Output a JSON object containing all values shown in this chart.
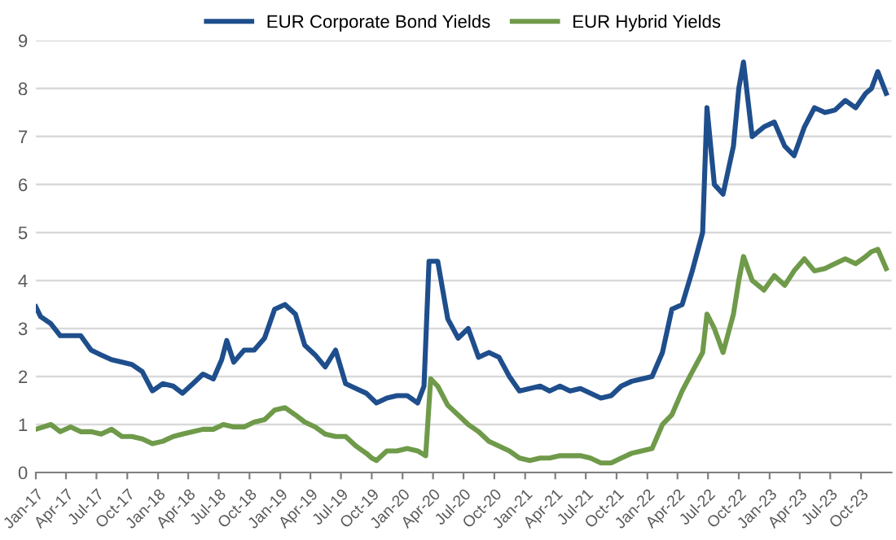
{
  "chart_data": {
    "type": "line",
    "legend": "top",
    "grid": "y",
    "line_style": "solid",
    "marker": "none",
    "xlim": [
      "2017-01-01",
      "2023-12-31"
    ],
    "ylim": [
      0,
      9
    ],
    "yticks": [
      0,
      1,
      2,
      3,
      4,
      5,
      6,
      7,
      8,
      9
    ],
    "xticks": [
      {
        "value": "2017-01-01",
        "label": "Jan-17"
      },
      {
        "value": "2017-04-01",
        "label": "Apr-17"
      },
      {
        "value": "2017-07-01",
        "label": "Jul-17"
      },
      {
        "value": "2017-10-01",
        "label": "Oct-17"
      },
      {
        "value": "2018-01-01",
        "label": "Jan-18"
      },
      {
        "value": "2018-04-01",
        "label": "Apr-18"
      },
      {
        "value": "2018-07-01",
        "label": "Jul-18"
      },
      {
        "value": "2018-10-01",
        "label": "Oct-18"
      },
      {
        "value": "2019-01-01",
        "label": "Jan-19"
      },
      {
        "value": "2019-04-01",
        "label": "Apr-19"
      },
      {
        "value": "2019-07-01",
        "label": "Jul-19"
      },
      {
        "value": "2019-10-01",
        "label": "Oct-19"
      },
      {
        "value": "2020-01-01",
        "label": "Jan-20"
      },
      {
        "value": "2020-04-01",
        "label": "Apr-20"
      },
      {
        "value": "2020-07-01",
        "label": "Jul-20"
      },
      {
        "value": "2020-10-01",
        "label": "Oct-20"
      },
      {
        "value": "2021-01-01",
        "label": "Jan-21"
      },
      {
        "value": "2021-04-01",
        "label": "Apr-21"
      },
      {
        "value": "2021-07-01",
        "label": "Jul-21"
      },
      {
        "value": "2021-10-01",
        "label": "Oct-21"
      },
      {
        "value": "2022-01-01",
        "label": "Jan-22"
      },
      {
        "value": "2022-04-01",
        "label": "Apr-22"
      },
      {
        "value": "2022-07-01",
        "label": "Jul-22"
      },
      {
        "value": "2022-10-01",
        "label": "Oct-22"
      },
      {
        "value": "2023-01-01",
        "label": "Jan-23"
      },
      {
        "value": "2023-04-01",
        "label": "Apr-23"
      },
      {
        "value": "2023-07-01",
        "label": "Jul-23"
      },
      {
        "value": "2023-10-01",
        "label": "Oct-23"
      }
    ],
    "series": [
      {
        "name": "EUR Corporate Bond Yields",
        "color": "#1f4e8c",
        "x": [
          "2017-01-01",
          "2017-01-15",
          "2017-02-15",
          "2017-03-15",
          "2017-05-15",
          "2017-06-15",
          "2017-07-15",
          "2017-08-15",
          "2017-09-15",
          "2017-10-15",
          "2017-11-15",
          "2017-12-15",
          "2018-01-15",
          "2018-02-15",
          "2018-03-15",
          "2018-04-15",
          "2018-05-15",
          "2018-06-15",
          "2018-07-10",
          "2018-07-25",
          "2018-08-15",
          "2018-09-15",
          "2018-10-15",
          "2018-11-15",
          "2018-12-15",
          "2019-01-15",
          "2019-02-15",
          "2019-03-15",
          "2019-04-15",
          "2019-05-15",
          "2019-06-15",
          "2019-07-15",
          "2019-08-15",
          "2019-09-15",
          "2019-10-15",
          "2019-11-15",
          "2019-12-15",
          "2020-01-15",
          "2020-02-15",
          "2020-03-05",
          "2020-03-20",
          "2020-04-15",
          "2020-05-15",
          "2020-06-15",
          "2020-07-15",
          "2020-08-15",
          "2020-09-15",
          "2020-10-15",
          "2020-11-15",
          "2020-12-15",
          "2021-01-15",
          "2021-02-15",
          "2021-03-15",
          "2021-04-15",
          "2021-05-15",
          "2021-06-15",
          "2021-07-15",
          "2021-08-15",
          "2021-09-15",
          "2021-10-15",
          "2021-11-15",
          "2021-12-15",
          "2022-01-15",
          "2022-02-15",
          "2022-03-15",
          "2022-04-15",
          "2022-05-15",
          "2022-06-15",
          "2022-06-28",
          "2022-07-20",
          "2022-08-15",
          "2022-09-15",
          "2022-10-01",
          "2022-10-15",
          "2022-11-10",
          "2022-12-15",
          "2023-01-15",
          "2023-02-15",
          "2023-03-15",
          "2023-04-15",
          "2023-05-15",
          "2023-06-15",
          "2023-07-15",
          "2023-08-15",
          "2023-09-15",
          "2023-10-15",
          "2023-11-01",
          "2023-11-20",
          "2023-12-15"
        ],
        "values": [
          3.45,
          3.25,
          3.1,
          2.85,
          2.85,
          2.55,
          2.45,
          2.35,
          2.3,
          2.25,
          2.1,
          1.7,
          1.85,
          1.8,
          1.65,
          1.85,
          2.05,
          1.95,
          2.35,
          2.75,
          2.3,
          2.55,
          2.55,
          2.8,
          3.4,
          3.5,
          3.3,
          2.65,
          2.45,
          2.2,
          2.55,
          1.85,
          1.75,
          1.65,
          1.45,
          1.55,
          1.6,
          1.6,
          1.45,
          1.8,
          4.4,
          4.4,
          3.2,
          2.8,
          3.0,
          2.4,
          2.5,
          2.4,
          2.0,
          1.7,
          1.75,
          1.8,
          1.7,
          1.8,
          1.7,
          1.75,
          1.65,
          1.55,
          1.6,
          1.8,
          1.9,
          1.95,
          2.0,
          2.5,
          3.4,
          3.5,
          4.2,
          5.0,
          7.6,
          6.0,
          5.8,
          6.8,
          8.0,
          8.55,
          7.0,
          7.2,
          7.3,
          6.8,
          6.6,
          7.2,
          7.6,
          7.5,
          7.55,
          7.75,
          7.6,
          7.9,
          8.0,
          8.35,
          7.9
        ]
      },
      {
        "name": "EUR Hybrid Yields",
        "color": "#6f9a4a",
        "x": [
          "2017-01-01",
          "2017-02-15",
          "2017-03-15",
          "2017-04-15",
          "2017-05-15",
          "2017-06-15",
          "2017-07-15",
          "2017-08-15",
          "2017-09-15",
          "2017-10-15",
          "2017-11-15",
          "2017-12-15",
          "2018-01-15",
          "2018-02-15",
          "2018-03-15",
          "2018-04-15",
          "2018-05-15",
          "2018-06-15",
          "2018-07-15",
          "2018-08-15",
          "2018-09-15",
          "2018-10-15",
          "2018-11-15",
          "2018-12-15",
          "2019-01-15",
          "2019-02-15",
          "2019-03-15",
          "2019-04-15",
          "2019-05-15",
          "2019-06-15",
          "2019-07-15",
          "2019-08-15",
          "2019-09-15",
          "2019-10-01",
          "2019-10-15",
          "2019-11-15",
          "2019-12-15",
          "2020-01-15",
          "2020-02-15",
          "2020-03-10",
          "2020-03-25",
          "2020-04-15",
          "2020-05-15",
          "2020-06-15",
          "2020-07-15",
          "2020-08-15",
          "2020-09-15",
          "2020-10-15",
          "2020-11-15",
          "2020-12-15",
          "2021-01-15",
          "2021-02-15",
          "2021-03-15",
          "2021-04-15",
          "2021-05-15",
          "2021-06-15",
          "2021-07-15",
          "2021-08-15",
          "2021-09-15",
          "2021-10-15",
          "2021-11-15",
          "2021-12-15",
          "2022-01-15",
          "2022-02-15",
          "2022-03-15",
          "2022-04-15",
          "2022-05-15",
          "2022-06-15",
          "2022-06-28",
          "2022-07-20",
          "2022-08-15",
          "2022-09-15",
          "2022-10-01",
          "2022-10-15",
          "2022-11-10",
          "2022-12-15",
          "2023-01-15",
          "2023-02-15",
          "2023-03-15",
          "2023-04-15",
          "2023-05-15",
          "2023-06-15",
          "2023-07-15",
          "2023-08-15",
          "2023-09-15",
          "2023-10-15",
          "2023-11-01",
          "2023-11-20",
          "2023-12-15"
        ],
        "values": [
          0.9,
          1.0,
          0.85,
          0.95,
          0.85,
          0.85,
          0.8,
          0.9,
          0.75,
          0.75,
          0.7,
          0.6,
          0.65,
          0.75,
          0.8,
          0.85,
          0.9,
          0.9,
          1.0,
          0.95,
          0.95,
          1.05,
          1.1,
          1.3,
          1.35,
          1.2,
          1.05,
          0.95,
          0.8,
          0.75,
          0.75,
          0.55,
          0.4,
          0.3,
          0.25,
          0.45,
          0.45,
          0.5,
          0.45,
          0.35,
          1.95,
          1.8,
          1.4,
          1.2,
          1.0,
          0.85,
          0.65,
          0.55,
          0.45,
          0.3,
          0.25,
          0.3,
          0.3,
          0.35,
          0.35,
          0.35,
          0.3,
          0.2,
          0.2,
          0.3,
          0.4,
          0.45,
          0.5,
          1.0,
          1.2,
          1.7,
          2.1,
          2.5,
          3.3,
          3.0,
          2.5,
          3.3,
          4.0,
          4.5,
          4.0,
          3.8,
          4.1,
          3.9,
          4.2,
          4.45,
          4.2,
          4.25,
          4.35,
          4.45,
          4.35,
          4.5,
          4.6,
          4.65,
          4.25
        ]
      }
    ]
  }
}
